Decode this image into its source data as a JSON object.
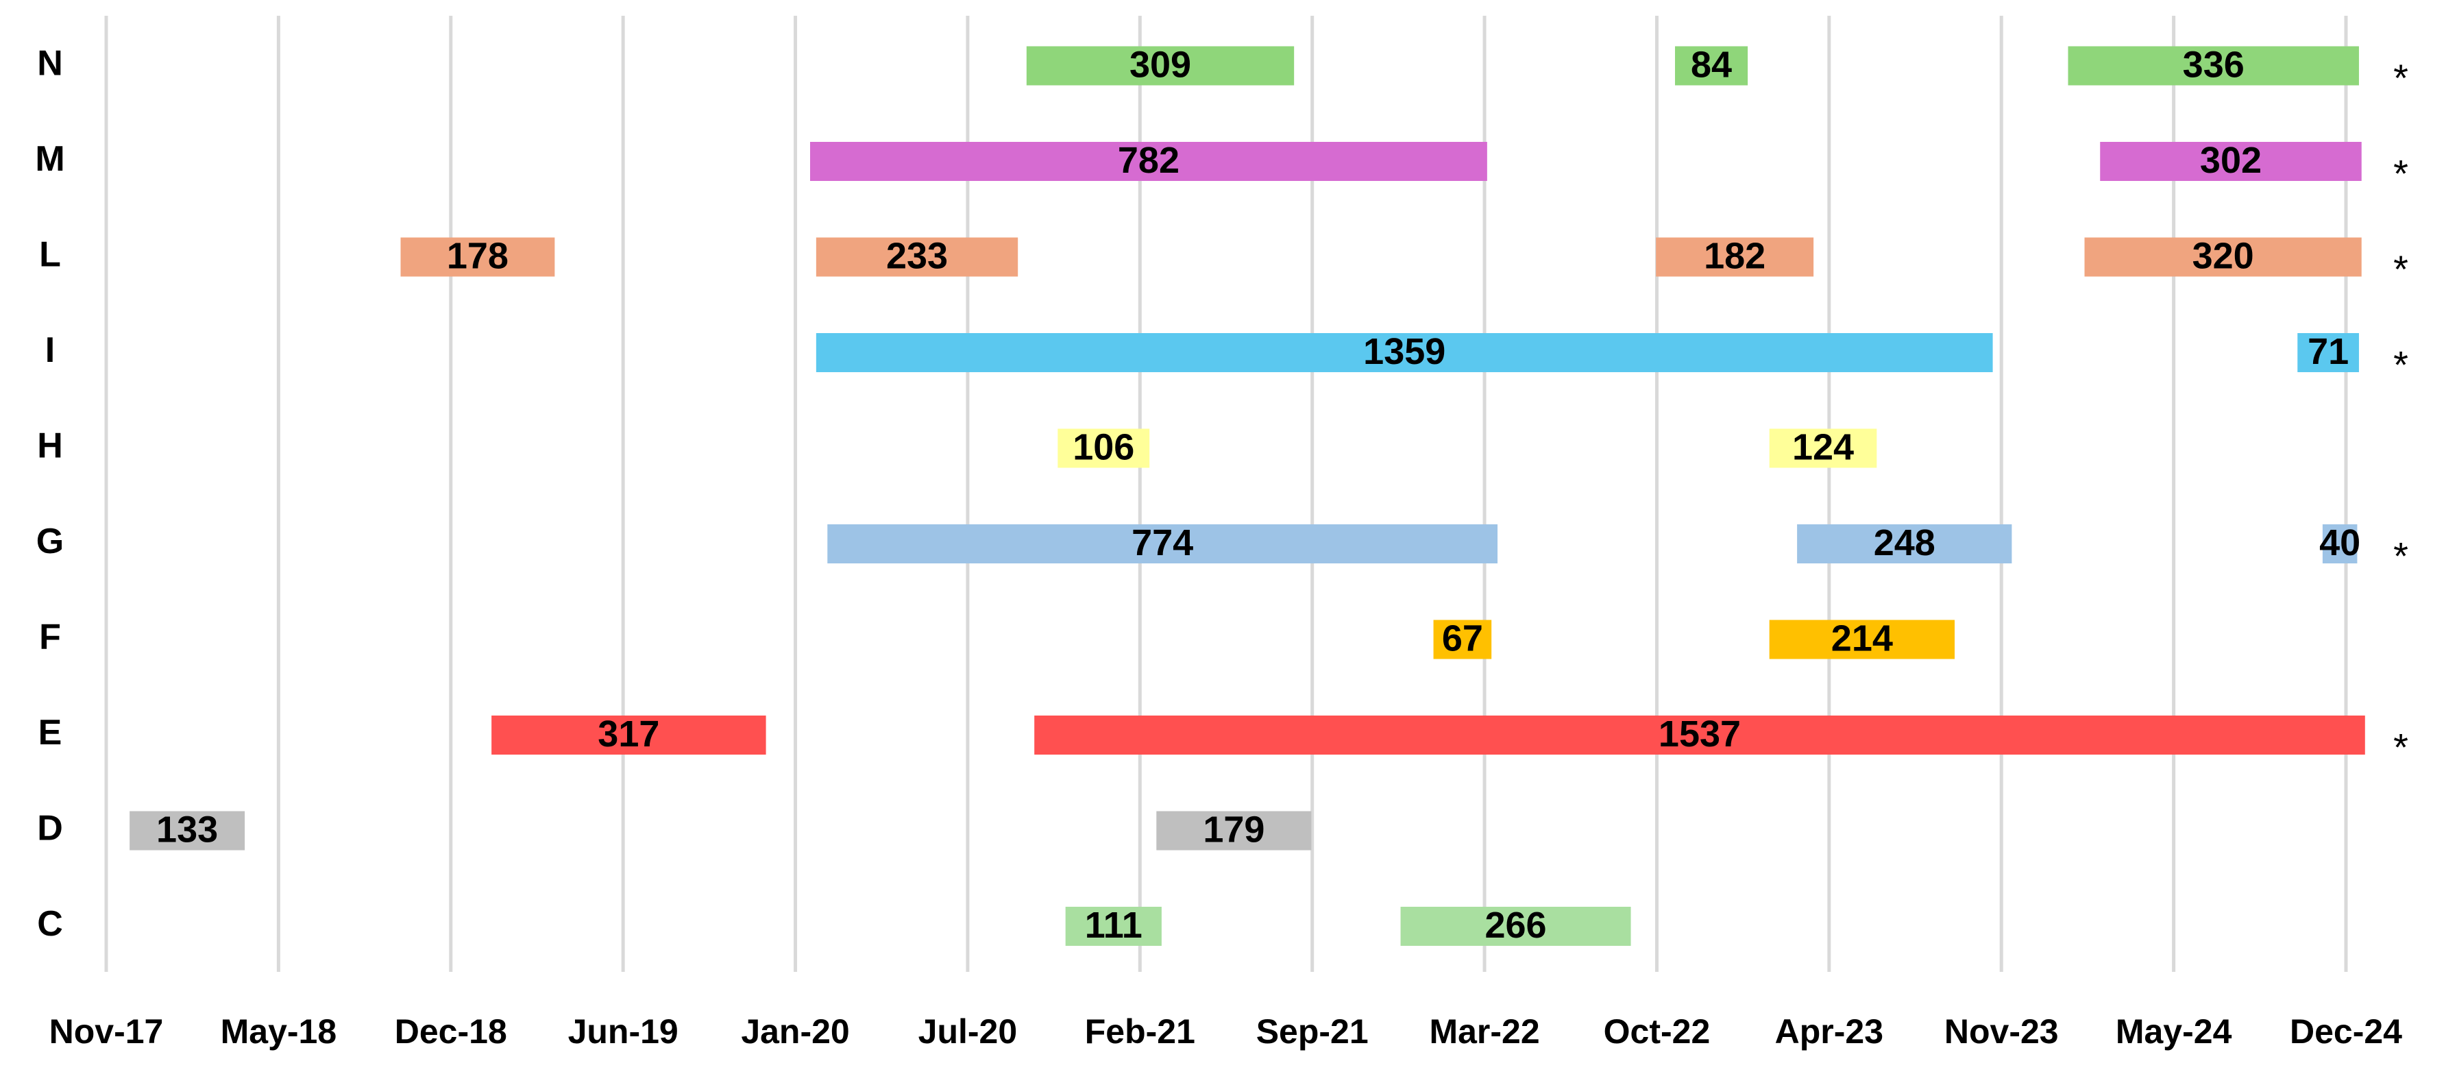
{
  "chart_data": {
    "type": "gantt",
    "xlim": [
      43040,
      45627
    ],
    "xticks": [
      {
        "value": 43040,
        "label": "Nov-17"
      },
      {
        "value": 43239,
        "label": "May-18"
      },
      {
        "value": 43438,
        "label": "Dec-18"
      },
      {
        "value": 43637,
        "label": "Jun-19"
      },
      {
        "value": 43836,
        "label": "Jan-20"
      },
      {
        "value": 44035,
        "label": "Jul-20"
      },
      {
        "value": 44234,
        "label": "Feb-21"
      },
      {
        "value": 44433,
        "label": "Sep-21"
      },
      {
        "value": 44632,
        "label": "Mar-22"
      },
      {
        "value": 44831,
        "label": "Oct-22"
      },
      {
        "value": 45030,
        "label": "Apr-23"
      },
      {
        "value": 45229,
        "label": "Nov-23"
      },
      {
        "value": 45428,
        "label": "May-24"
      },
      {
        "value": 45627,
        "label": "Dec-24"
      }
    ],
    "grid": true,
    "rows": [
      {
        "name": "N",
        "color": "#8fd67a",
        "note": "*",
        "bars": [
          {
            "start": 44103,
            "duration": 309
          },
          {
            "start": 44852,
            "duration": 84
          },
          {
            "start": 45306,
            "duration": 336
          }
        ]
      },
      {
        "name": "M",
        "color": "#d66bd1",
        "note": "*",
        "bars": [
          {
            "start": 43853,
            "duration": 782
          },
          {
            "start": 45343,
            "duration": 302
          }
        ]
      },
      {
        "name": "L",
        "color": "#f0a47f",
        "note": "*",
        "bars": [
          {
            "start": 43380,
            "duration": 178
          },
          {
            "start": 43860,
            "duration": 233
          },
          {
            "start": 44830,
            "duration": 182
          },
          {
            "start": 45325,
            "duration": 320
          }
        ]
      },
      {
        "name": "I",
        "color": "#5bc8ef",
        "note": "*",
        "bars": [
          {
            "start": 43860,
            "duration": 1359
          },
          {
            "start": 45571,
            "duration": 71
          }
        ]
      },
      {
        "name": "H",
        "color": "#ffff99",
        "note": null,
        "bars": [
          {
            "start": 44139,
            "duration": 106
          },
          {
            "start": 44961,
            "duration": 124
          }
        ]
      },
      {
        "name": "G",
        "color": "#9dc3e6",
        "note": "*",
        "bars": [
          {
            "start": 43873,
            "duration": 774
          },
          {
            "start": 44993,
            "duration": 248
          },
          {
            "start": 45600,
            "duration": 40
          }
        ]
      },
      {
        "name": "F",
        "color": "#ffc000",
        "note": null,
        "bars": [
          {
            "start": 44573,
            "duration": 67
          },
          {
            "start": 44961,
            "duration": 214
          }
        ]
      },
      {
        "name": "E",
        "color": "#ff5050",
        "note": "*",
        "bars": [
          {
            "start": 43485,
            "duration": 317
          },
          {
            "start": 44112,
            "duration": 1537
          }
        ]
      },
      {
        "name": "D",
        "color": "#bfbfbf",
        "note": null,
        "bars": [
          {
            "start": 43067,
            "duration": 133
          },
          {
            "start": 44253,
            "duration": 179
          }
        ]
      },
      {
        "name": "C",
        "color": "#a9dfa0",
        "note": null,
        "bars": [
          {
            "start": 44148,
            "duration": 111
          },
          {
            "start": 44535,
            "duration": 266
          }
        ]
      }
    ]
  }
}
